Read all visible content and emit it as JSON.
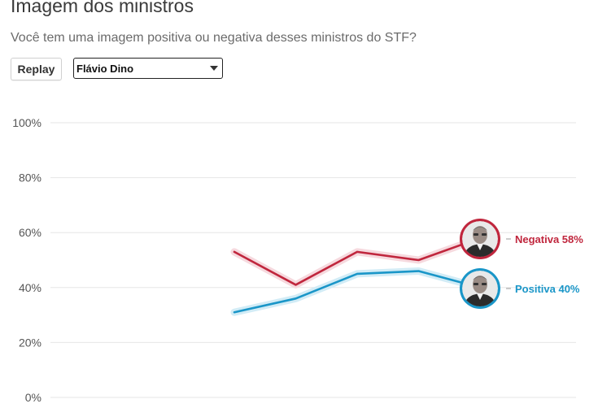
{
  "header": {
    "title": "Imagem dos ministros",
    "subtitle": "Você tem uma imagem positiva ou negativa desses ministros do STF?"
  },
  "controls": {
    "replay_label": "Replay",
    "selected_minister": "Flávio Dino"
  },
  "chart_data": {
    "type": "line",
    "title": "Imagem dos ministros",
    "subtitle": "Você tem uma imagem positiva ou negativa desses ministros do STF?",
    "xlabel": "",
    "ylabel": "",
    "ylim": [
      0,
      100
    ],
    "y_ticks": [
      0,
      20,
      40,
      60,
      80,
      100
    ],
    "y_tick_labels": [
      "0%",
      "20%",
      "40%",
      "60%",
      "80%",
      "100%"
    ],
    "grid": true,
    "x": [
      1,
      2,
      3,
      4,
      5
    ],
    "series": [
      {
        "name": "Negativa",
        "color": "#c0263d",
        "values": [
          53,
          41,
          53,
          50,
          58
        ],
        "end_label": "Negativa 58%"
      },
      {
        "name": "Positiva",
        "color": "#1a96c8",
        "values": [
          31,
          36,
          45,
          46,
          40
        ],
        "end_label": "Positiva 40%"
      }
    ]
  }
}
